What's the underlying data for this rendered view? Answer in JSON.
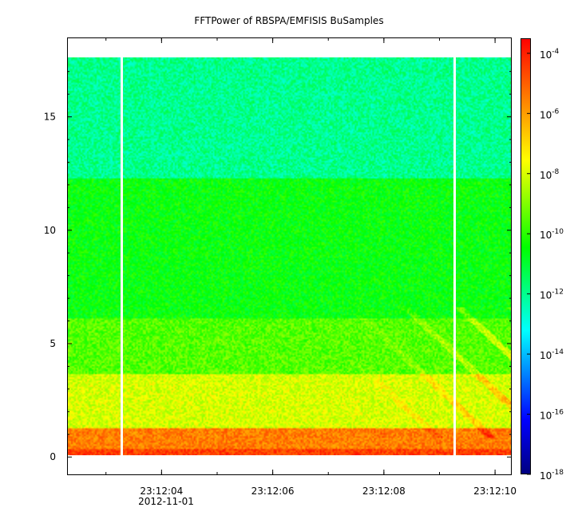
{
  "chart_data": {
    "type": "heatmap",
    "title": "FFTPower of RBSPA/EMFISIS  BuSamples",
    "xlabel": "",
    "ylabel": "",
    "x": {
      "range": [
        "23:12:02.3",
        "23:12:10.3"
      ],
      "ticks": [
        "23:12:04",
        "23:12:06",
        "23:12:08",
        "23:12:10"
      ],
      "date_label": "2012-11-01"
    },
    "y": {
      "range": [
        -0.8,
        18.5
      ],
      "ticks": [
        0,
        5,
        10,
        15
      ],
      "data_range": [
        0,
        17.5
      ]
    },
    "colorbar": {
      "scale": "log",
      "range": [
        "1e-18",
        "1e-3.5"
      ],
      "tick_base": "10",
      "tick_exponents": [
        "-4",
        "-6",
        "-8",
        "-10",
        "-12",
        "-14",
        "-16",
        "-18"
      ]
    },
    "gaps": [
      {
        "time": "23:12:03.3"
      },
      {
        "time": "23:12:09.3"
      }
    ],
    "bands": [
      {
        "y_range": [
          0,
          0.3
        ],
        "log10_power": -4.5
      },
      {
        "y_range": [
          0.3,
          1.2
        ],
        "log10_power": -5.5
      },
      {
        "y_range": [
          1.2,
          3.6
        ],
        "log10_power": -8.0
      },
      {
        "y_range": [
          3.6,
          6.0
        ],
        "log10_power": -9.5
      },
      {
        "y_range": [
          6.0,
          12.2
        ],
        "log10_power": -10.5
      },
      {
        "y_range": [
          12.2,
          17.5
        ],
        "log10_power": -12.0
      }
    ],
    "grid": false,
    "legend": "colorbar-right"
  }
}
